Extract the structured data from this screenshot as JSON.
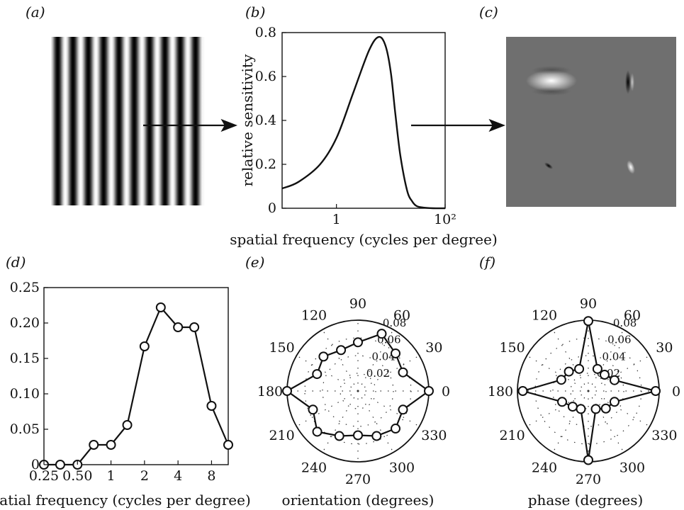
{
  "panels": {
    "a": {
      "label": "(a)"
    },
    "b": {
      "label": "(b)"
    },
    "c": {
      "label": "(c)"
    },
    "d": {
      "label": "(d)"
    },
    "e": {
      "label": "(e)"
    },
    "f": {
      "label": "(f)"
    }
  },
  "colors": {
    "line": "#111111",
    "patch_gray": "#6f6f6f",
    "marker_fill": "#ffffff"
  },
  "chart_data": [
    {
      "panel": "a",
      "type": "other",
      "description_kind": "grating",
      "cycles": 10
    },
    {
      "panel": "b",
      "type": "line",
      "title": "",
      "xlabel": "spatial frequency (cycles per degree)",
      "ylabel": "relative sensitivity",
      "xscale": "log",
      "xlim": [
        0.1,
        100
      ],
      "ylim": [
        0,
        0.8
      ],
      "x_ticks": [
        {
          "v": 1,
          "label": "1"
        },
        {
          "v": 100,
          "label": "10²"
        }
      ],
      "y_ticks": [
        0,
        0.2,
        0.4,
        0.6,
        0.8
      ],
      "y_tick_labels": [
        "0",
        "0.2",
        "0.4",
        "0.6",
        "0.8"
      ],
      "series": [
        {
          "x": [
            0.1,
            0.2,
            0.5,
            1,
            2,
            4,
            6,
            8,
            10,
            12,
            15,
            20,
            25,
            30,
            40,
            60,
            100
          ],
          "y": [
            0.09,
            0.12,
            0.2,
            0.32,
            0.52,
            0.72,
            0.78,
            0.74,
            0.62,
            0.44,
            0.24,
            0.08,
            0.03,
            0.01,
            0.003,
            0,
            0
          ]
        }
      ]
    },
    {
      "panel": "c",
      "type": "other",
      "description_kind": "filter-patches"
    },
    {
      "panel": "d",
      "type": "line",
      "title": "",
      "xlabel": "spatial frequency (cycles per degree)",
      "ylabel": "",
      "xscale": "log",
      "ylim": [
        0,
        0.25
      ],
      "x_ticks": [
        {
          "v": 0.25,
          "label": "0.25"
        },
        {
          "v": 0.5,
          "label": "0.50"
        },
        {
          "v": 1,
          "label": "1"
        },
        {
          "v": 2,
          "label": "2"
        },
        {
          "v": 4,
          "label": "4"
        },
        {
          "v": 8,
          "label": "8"
        }
      ],
      "y_ticks": [
        0,
        0.05,
        0.1,
        0.15,
        0.2,
        0.25
      ],
      "y_tick_labels": [
        "0",
        "0.05",
        "0.10",
        "0.15",
        "0.20",
        "0.25"
      ],
      "series": [
        {
          "x": [
            0.25,
            0.35,
            0.5,
            0.7,
            1.0,
            1.4,
            2.0,
            2.8,
            4.0,
            5.6,
            8.0,
            11.3
          ],
          "y": [
            0,
            0,
            0,
            0.028,
            0.028,
            0.056,
            0.167,
            0.222,
            0.194,
            0.194,
            0.083,
            0.028
          ]
        }
      ]
    },
    {
      "panel": "e",
      "type": "polar",
      "xlabel": "orientation (degrees)",
      "rmax": 0.08,
      "r_ticks": [
        "0.02",
        "0.04",
        "0.06",
        "0.08"
      ],
      "angle_ticks": [
        "0",
        "30",
        "60",
        "90",
        "120",
        "150",
        "180",
        "210",
        "240",
        "270",
        "300",
        "330"
      ],
      "series": [
        {
          "theta": [
            0,
            22.5,
            45,
            67.5,
            90,
            112.5,
            135,
            157.5,
            180,
            202.5,
            225,
            247.5,
            270,
            292.5,
            315,
            337.5
          ],
          "r": [
            0.08,
            0.055,
            0.06,
            0.07,
            0.055,
            0.05,
            0.055,
            0.05,
            0.08,
            0.055,
            0.065,
            0.055,
            0.05,
            0.055,
            0.06,
            0.055
          ]
        }
      ]
    },
    {
      "panel": "f",
      "type": "polar",
      "xlabel": "phase (degrees)",
      "rmax": 0.08,
      "r_ticks": [
        "0.02",
        "0.04",
        "0.06",
        "0.08"
      ],
      "angle_ticks": [
        "0",
        "30",
        "60",
        "90",
        "120",
        "150",
        "180",
        "210",
        "240",
        "270",
        "300",
        "330"
      ],
      "series": [
        {
          "theta": [
            0,
            22.5,
            45,
            67.5,
            90,
            112.5,
            135,
            157.5,
            180,
            202.5,
            225,
            247.5,
            270,
            292.5,
            315,
            337.5
          ],
          "r": [
            0.076,
            0.032,
            0.026,
            0.027,
            0.079,
            0.027,
            0.031,
            0.033,
            0.074,
            0.032,
            0.025,
            0.022,
            0.078,
            0.022,
            0.028,
            0.032
          ]
        }
      ]
    }
  ]
}
